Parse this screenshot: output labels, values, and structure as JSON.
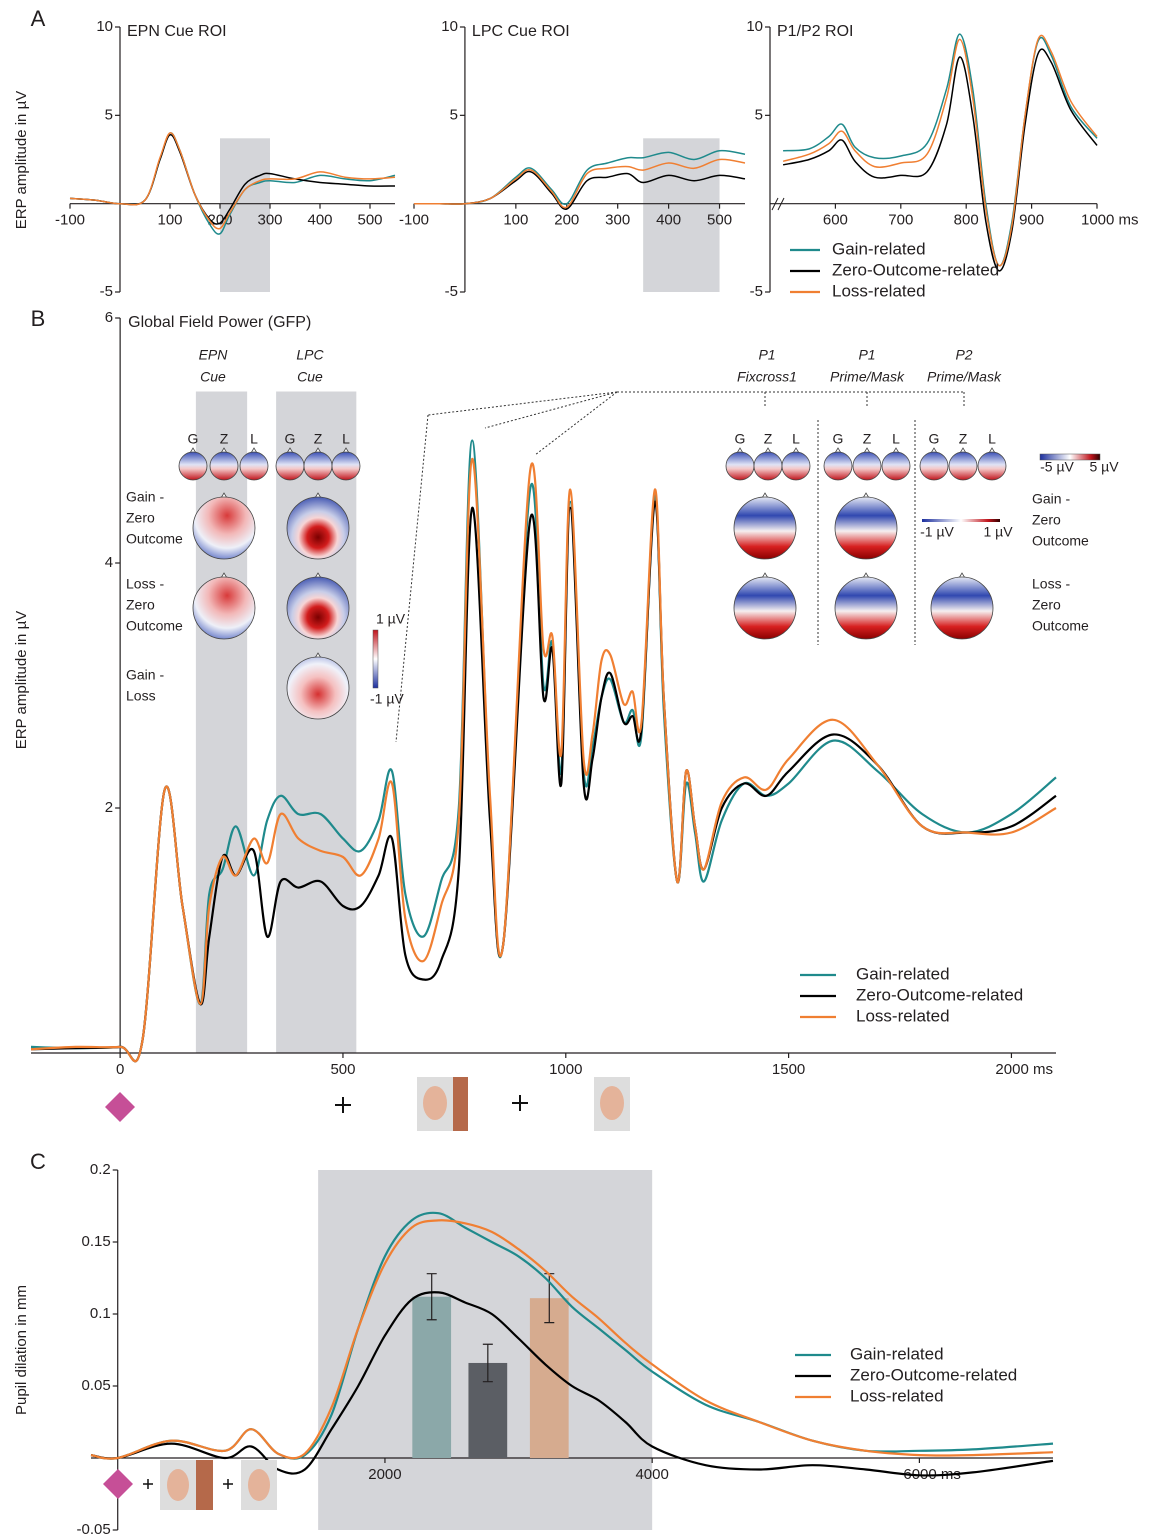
{
  "chart_data": [
    {
      "type": "line",
      "panel_label": "A",
      "title": "EPN Cue ROI",
      "ylabel": "ERP amplitude in µV",
      "xlim": [
        -100,
        550
      ],
      "ylim": [
        -5,
        10
      ],
      "xticks": [
        -100,
        100,
        200,
        300,
        400,
        500
      ],
      "yticks": [
        -5,
        5,
        10
      ],
      "shaded_regions": [
        {
          "x": [
            200,
            300
          ],
          "y": [
            -5,
            3.7
          ]
        }
      ],
      "grid": false,
      "x": [
        -100,
        -50,
        0,
        50,
        80,
        100,
        120,
        150,
        180,
        200,
        220,
        250,
        280,
        300,
        350,
        400,
        450,
        500,
        550
      ],
      "series": [
        {
          "name": "Gain-related",
          "color": "#1f8a8c",
          "values": [
            0.3,
            0.2,
            0,
            0.2,
            2.5,
            4,
            3,
            0.5,
            -1.2,
            -1.7,
            -0.6,
            0.8,
            1.2,
            1.3,
            1.2,
            1.6,
            1.4,
            1.3,
            1.6
          ]
        },
        {
          "name": "Zero-Outcome-related",
          "color": "#000000",
          "values": [
            0.3,
            0.2,
            0,
            0.2,
            2.5,
            3.9,
            2.9,
            0.5,
            -0.9,
            -1.1,
            -0.3,
            1.1,
            1.6,
            1.7,
            1.4,
            1.2,
            1.1,
            1.0,
            1.0
          ]
        },
        {
          "name": "Loss-related",
          "color": "#f07f32",
          "values": [
            0.3,
            0.2,
            0,
            0.2,
            2.6,
            4,
            3,
            0.5,
            -1.0,
            -1.4,
            -0.5,
            0.8,
            1.3,
            1.4,
            1.4,
            1.8,
            1.5,
            1.4,
            1.5
          ]
        }
      ]
    },
    {
      "type": "line",
      "title": "LPC Cue ROI",
      "xlim": [
        -100,
        550
      ],
      "ylim": [
        -5,
        10
      ],
      "xticks": [
        -100,
        100,
        200,
        300,
        400,
        500
      ],
      "yticks": [
        -5,
        5,
        10
      ],
      "shaded_regions": [
        {
          "x": [
            350,
            500
          ],
          "y": [
            -5,
            3.7
          ]
        }
      ],
      "grid": false,
      "x": [
        -100,
        -50,
        0,
        50,
        100,
        130,
        170,
        200,
        240,
        280,
        320,
        350,
        400,
        450,
        500,
        550
      ],
      "series": [
        {
          "name": "Gain-related",
          "color": "#1f8a8c",
          "values": [
            0,
            0,
            0,
            0.3,
            1.5,
            2.0,
            0.8,
            0,
            1.9,
            2.3,
            2.6,
            2.6,
            2.9,
            2.5,
            3.0,
            2.8
          ]
        },
        {
          "name": "Zero-Outcome-related",
          "color": "#000000",
          "values": [
            0,
            0,
            0,
            0.3,
            1.3,
            1.8,
            0.6,
            -0.3,
            1.3,
            1.5,
            1.7,
            1.2,
            1.6,
            1.3,
            1.6,
            1.4
          ]
        },
        {
          "name": "Loss-related",
          "color": "#f07f32",
          "values": [
            0,
            0,
            0,
            0.3,
            1.4,
            1.9,
            0.7,
            -0.2,
            1.7,
            2.0,
            2.1,
            1.9,
            2.3,
            2.0,
            2.5,
            2.3
          ]
        }
      ]
    },
    {
      "type": "line",
      "title": "P1/P2 ROI",
      "xlim": [
        500,
        1000
      ],
      "ylim": [
        -5,
        10
      ],
      "xticks": [
        600,
        700,
        800,
        900,
        {
          "value": 1000,
          "label": "1000 ms"
        }
      ],
      "yticks": [
        -5,
        5,
        10
      ],
      "grid": false,
      "legend": "lower right",
      "x": [
        520,
        560,
        590,
        610,
        630,
        660,
        700,
        740,
        770,
        790,
        810,
        830,
        850,
        870,
        890,
        910,
        930,
        960,
        1000
      ],
      "series": [
        {
          "name": "Gain-related",
          "color": "#1f8a8c",
          "values": [
            3,
            3.1,
            3.8,
            4.5,
            3.2,
            2.6,
            2.7,
            3.4,
            6.5,
            9.6,
            6.5,
            0,
            -3.5,
            -1,
            5,
            9.2,
            8.4,
            5.5,
            3.7
          ]
        },
        {
          "name": "Zero-Outcome-related",
          "color": "#000000",
          "values": [
            2.2,
            2.5,
            3,
            3.6,
            2.4,
            1.5,
            1.6,
            1.8,
            4.5,
            8.3,
            5,
            -1,
            -3.8,
            -1.5,
            4.5,
            8.5,
            8.0,
            5.3,
            3.3
          ]
        },
        {
          "name": "Loss-related",
          "color": "#f07f32",
          "values": [
            2.4,
            2.8,
            3.4,
            4.1,
            3.0,
            2.1,
            2.3,
            2.8,
            6,
            9.3,
            6,
            -0.3,
            -3.5,
            -1.2,
            5,
            9.3,
            8.6,
            5.8,
            3.8
          ]
        }
      ]
    },
    {
      "type": "line",
      "panel_label": "B",
      "title": "Global Field Power (GFP)",
      "ylabel": "ERP amplitude in µV",
      "xlim": [
        -200,
        2100
      ],
      "ylim": [
        0,
        6
      ],
      "xticks": [
        0,
        500,
        1000,
        1500,
        {
          "value": 2000,
          "label": "2000 ms"
        }
      ],
      "yticks": [
        2,
        4,
        6
      ],
      "shaded_regions": [
        {
          "x": [
            170,
            285
          ],
          "y": [
            0,
            5.4
          ]
        },
        {
          "x": [
            350,
            530
          ],
          "y": [
            0,
            5.4
          ]
        }
      ],
      "grid": false,
      "legend": "lower right",
      "annotations": [
        "EPN",
        "Cue",
        "LPC",
        "Cue",
        "P1",
        "Fixcross1",
        "P1",
        "Prime/Mask",
        "P2",
        "Prime/Mask",
        "G",
        "Z",
        "L",
        "Gain -",
        "Zero",
        "Outcome",
        "Loss -",
        "Zero",
        "Outcome",
        "Gain -",
        "Loss",
        "Gain -",
        "Zero",
        "Outcome",
        "Loss -",
        "Zero",
        "Outcome",
        "1 µV",
        "-1 µV",
        "-5 µV",
        "5 µV",
        "-1 µV",
        "1 µV"
      ],
      "x": [
        -200,
        -100,
        0,
        50,
        100,
        140,
        180,
        200,
        230,
        260,
        300,
        330,
        360,
        400,
        450,
        500,
        540,
        580,
        610,
        640,
        680,
        720,
        760,
        790,
        830,
        860,
        920,
        950,
        970,
        990,
        1010,
        1040,
        1060,
        1080,
        1100,
        1130,
        1150,
        1170,
        1200,
        1220,
        1250,
        1270,
        1290,
        1310,
        1350,
        1400,
        1450,
        1500,
        1600,
        1700,
        1800,
        1900,
        2000,
        2100
      ],
      "series": [
        {
          "name": "Gain-related",
          "color": "#1f8a8c",
          "values": [
            0.05,
            0.04,
            0.05,
            0.1,
            2.15,
            1.2,
            0.4,
            1.3,
            1.5,
            1.85,
            1.45,
            1.9,
            2.1,
            1.95,
            1.95,
            1.75,
            1.65,
            1.9,
            2.3,
            1.3,
            0.95,
            1.4,
            2.0,
            5.0,
            2.0,
            0.9,
            4.6,
            3.0,
            3.35,
            2.3,
            4.5,
            2.3,
            2.5,
            2.9,
            3.05,
            2.7,
            2.8,
            2.6,
            4.55,
            2.8,
            1.4,
            2.2,
            1.8,
            1.4,
            1.9,
            2.2,
            2.1,
            2.2,
            2.55,
            2.3,
            1.95,
            1.8,
            1.95,
            2.25
          ]
        },
        {
          "name": "Zero-Outcome-related",
          "color": "#000000",
          "values": [
            0.03,
            0.04,
            0.05,
            0.1,
            2.15,
            1.2,
            0.4,
            0.95,
            1.6,
            1.45,
            1.65,
            0.95,
            1.4,
            1.35,
            1.4,
            1.2,
            1.2,
            1.45,
            1.75,
            0.8,
            0.6,
            0.75,
            1.5,
            4.45,
            1.9,
            0.9,
            4.35,
            2.9,
            3.3,
            2.2,
            4.45,
            2.2,
            2.4,
            2.9,
            3.1,
            2.7,
            2.75,
            2.65,
            4.5,
            2.9,
            1.4,
            2.3,
            1.85,
            1.5,
            2.0,
            2.2,
            2.1,
            2.3,
            2.6,
            2.35,
            1.85,
            1.8,
            1.85,
            2.1
          ]
        },
        {
          "name": "Loss-related",
          "color": "#f07f32",
          "values": [
            0.03,
            0.05,
            0.05,
            0.1,
            2.15,
            1.2,
            0.4,
            1.2,
            1.6,
            1.45,
            1.75,
            1.55,
            1.95,
            1.75,
            1.65,
            1.6,
            1.45,
            1.75,
            2.2,
            1.1,
            0.75,
            1.2,
            1.9,
            4.85,
            2.1,
            0.9,
            4.75,
            3.3,
            3.4,
            2.45,
            4.6,
            2.4,
            2.6,
            3.2,
            3.25,
            2.85,
            2.95,
            2.7,
            4.6,
            2.9,
            1.4,
            2.3,
            1.85,
            1.5,
            2.05,
            2.25,
            2.15,
            2.4,
            2.72,
            2.35,
            1.85,
            1.8,
            1.8,
            2.0
          ]
        }
      ]
    },
    {
      "type": "line",
      "panel_label": "C",
      "ylabel": "Pupil dilation in mm",
      "xlim": [
        -200,
        7000
      ],
      "ylim": [
        -0.05,
        0.2
      ],
      "xticks": [
        2000,
        4000,
        {
          "value": 6000,
          "label": "6000 ms"
        }
      ],
      "yticks": [
        -0.05,
        0.05,
        0.1,
        0.15,
        0.2
      ],
      "shaded_regions": [
        {
          "x": [
            1500,
            4000
          ],
          "y": [
            -0.05,
            0.2
          ]
        }
      ],
      "grid": false,
      "legend": "lower right",
      "x": [
        -200,
        0,
        400,
        800,
        1000,
        1200,
        1400,
        1600,
        1800,
        2000,
        2200,
        2400,
        2600,
        2800,
        3000,
        3200,
        3400,
        3600,
        3800,
        4000,
        4400,
        4800,
        5200,
        5600,
        6000,
        6400,
        7000
      ],
      "series": [
        {
          "name": "Gain-related",
          "color": "#1f8a8c",
          "values": [
            0.002,
            0,
            0.012,
            0.005,
            0.02,
            0.003,
            0.002,
            0.03,
            0.09,
            0.14,
            0.165,
            0.17,
            0.16,
            0.15,
            0.14,
            0.125,
            0.105,
            0.09,
            0.075,
            0.06,
            0.037,
            0.025,
            0.012,
            0.005,
            0.005,
            0.006,
            0.01
          ]
        },
        {
          "name": "Zero-Outcome-related",
          "color": "#000000",
          "values": [
            0.002,
            0,
            0.01,
            0,
            0.008,
            -0.008,
            -0.008,
            0.02,
            0.05,
            0.085,
            0.11,
            0.115,
            0.108,
            0.1,
            0.083,
            0.065,
            0.05,
            0.04,
            0.025,
            0.008,
            -0.005,
            -0.008,
            -0.005,
            -0.008,
            -0.012,
            -0.01,
            -0.002
          ]
        },
        {
          "name": "Loss-related",
          "color": "#f07f32",
          "values": [
            0.002,
            0,
            0.012,
            0.005,
            0.02,
            0.003,
            0.003,
            0.035,
            0.09,
            0.135,
            0.16,
            0.165,
            0.163,
            0.157,
            0.145,
            0.13,
            0.112,
            0.097,
            0.08,
            0.065,
            0.04,
            0.025,
            0.012,
            0.005,
            0.002,
            0.002,
            0.004
          ]
        }
      ],
      "bars": {
        "x": [
          2350,
          2770,
          3230
        ],
        "values": [
          0.112,
          0.066,
          0.111
        ],
        "errors": [
          0.016,
          0.013,
          0.017
        ],
        "colors": [
          "#8ba8a9",
          "#5b5e64",
          "#d6ab8f"
        ]
      }
    }
  ]
}
